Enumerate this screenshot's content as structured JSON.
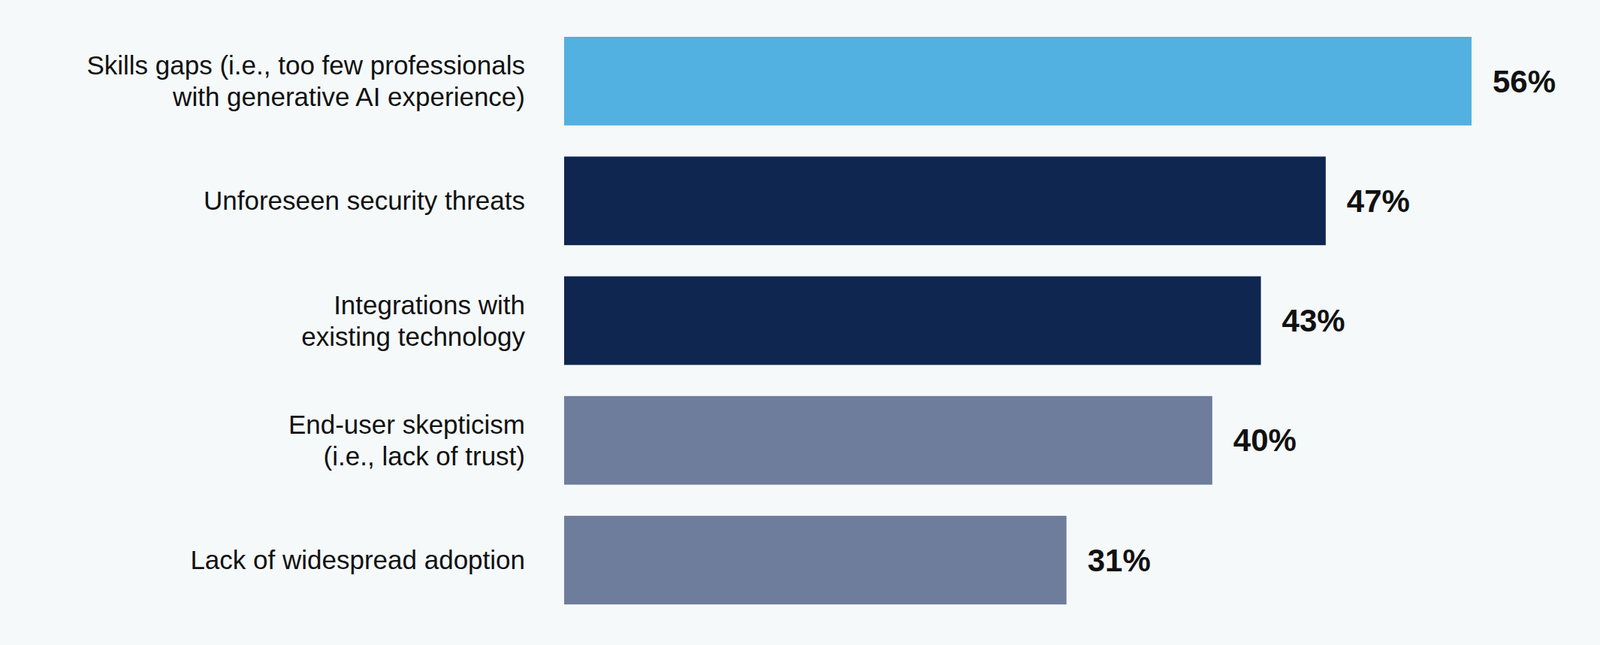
{
  "chart_data": {
    "type": "bar",
    "orientation": "horizontal",
    "categories": [
      "Skills gaps (i.e., too few professionals\nwith generative AI experience)",
      "Unforeseen security threats",
      "Integrations with\nexisting technology",
      "End-user skepticism\n(i.e., lack of trust)",
      "Lack of widespread adoption"
    ],
    "values": [
      56,
      47,
      43,
      40,
      31
    ],
    "value_labels": [
      "56%",
      "47%",
      "43%",
      "40%",
      "31%"
    ],
    "colors": [
      "#52b1e0",
      "#0f2650",
      "#0f2650",
      "#6e7d9c",
      "#6e7d9c"
    ],
    "xlim": [
      0,
      56
    ],
    "data_labels": true,
    "tick_labels": "y",
    "grid": false
  }
}
